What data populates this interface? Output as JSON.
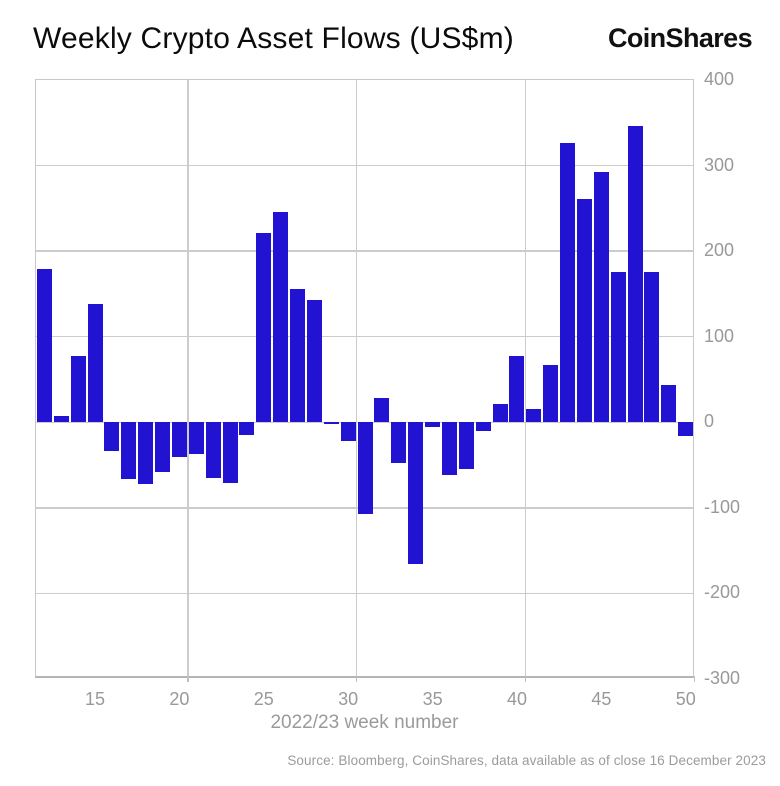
{
  "header": {
    "title": "Weekly Crypto Asset Flows (US$m)",
    "logo_text": "CoinShares"
  },
  "chart_data": {
    "type": "bar",
    "title": "Weekly Crypto Asset Flows (US$m)",
    "xlabel": "2022/23 week number",
    "ylabel": "",
    "x": [
      12,
      13,
      14,
      15,
      16,
      17,
      18,
      19,
      20,
      21,
      22,
      23,
      24,
      25,
      26,
      27,
      28,
      29,
      30,
      31,
      32,
      33,
      34,
      35,
      36,
      37,
      38,
      39,
      40,
      41,
      42,
      43,
      44,
      45,
      46,
      47,
      48,
      49,
      50
    ],
    "values": [
      179,
      7,
      78,
      138,
      -34,
      -66,
      -72,
      -58,
      -41,
      -37,
      -65,
      -71,
      -15,
      221,
      246,
      156,
      143,
      -2,
      -22,
      -107,
      28,
      -48,
      -166,
      -5,
      -62,
      -55,
      -10,
      21,
      77,
      15,
      67,
      326,
      261,
      293,
      176,
      346,
      176,
      43,
      -16
    ],
    "x_tick_labels": [
      15,
      20,
      25,
      30,
      35,
      40,
      45,
      50
    ],
    "y_tick_labels": [
      400,
      300,
      200,
      100,
      0,
      -100,
      -200,
      -300
    ],
    "ylim": [
      -300,
      400
    ],
    "xlim": [
      11.5,
      50.55
    ],
    "vertical_gridlines_at": [
      20.5,
      30.5,
      40.5
    ],
    "grid": true,
    "legend": "none",
    "bar_color": "#2213d2",
    "grid_color": "#cccccc",
    "axis_text_color": "#999999"
  },
  "footer": {
    "source": "Source: Bloomberg, CoinShares, data available as of close 16 December 2023"
  }
}
